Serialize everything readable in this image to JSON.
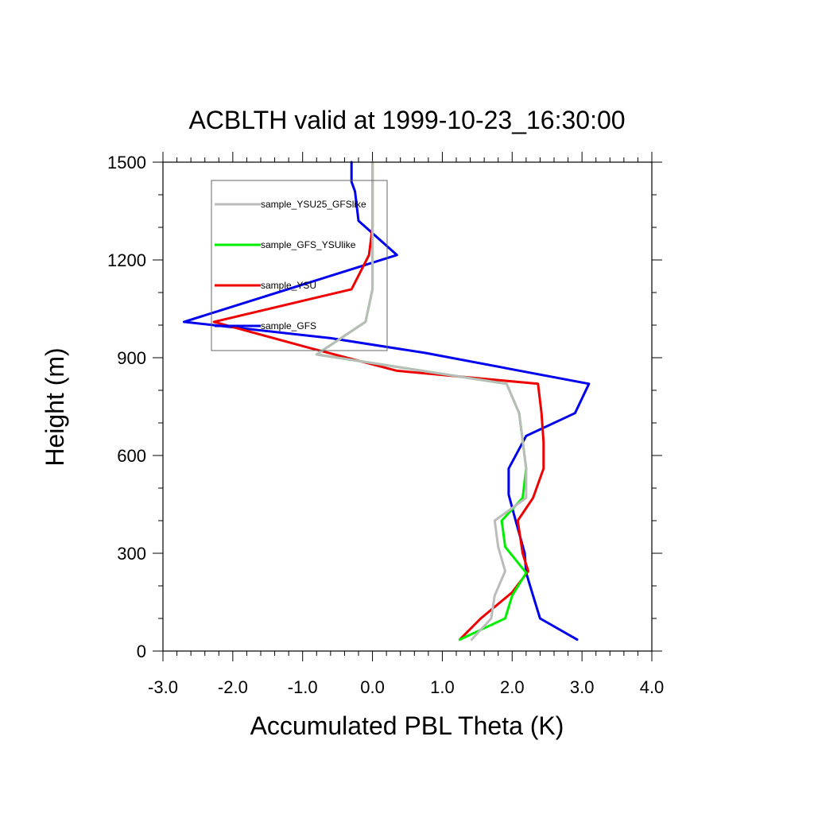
{
  "chart_data": {
    "type": "line",
    "title": "ACBLTH valid at 1999-10-23_16:30:00",
    "xlabel": "Accumulated PBL Theta (K)",
    "ylabel": "Height (m)",
    "xlim": [
      -3.0,
      4.0
    ],
    "ylim": [
      0,
      1500
    ],
    "x_ticks": [
      -3.0,
      -2.0,
      -1.0,
      0.0,
      1.0,
      2.0,
      3.0,
      4.0
    ],
    "x_tick_labels": [
      "-3.0",
      "-2.0",
      "-1.0",
      "0.0",
      "1.0",
      "2.0",
      "3.0",
      "4.0"
    ],
    "y_ticks": [
      0,
      300,
      600,
      900,
      1200,
      1500
    ],
    "y_tick_labels": [
      "0",
      "300",
      "600",
      "900",
      "1200",
      "1500"
    ],
    "grid": false,
    "legend_position": "top-left",
    "series": [
      {
        "name": "sample_GFS",
        "color": "#0000ee",
        "points": [
          [
            2.93,
            35
          ],
          [
            2.4,
            100
          ],
          [
            2.3,
            170
          ],
          [
            2.2,
            240
          ],
          [
            2.18,
            300
          ],
          [
            2.05,
            400
          ],
          [
            1.95,
            480
          ],
          [
            1.95,
            560
          ],
          [
            2.2,
            660
          ],
          [
            2.9,
            730
          ],
          [
            3.1,
            820
          ],
          [
            0.75,
            915
          ],
          [
            -0.6,
            960
          ],
          [
            -2.7,
            1010
          ],
          [
            0.35,
            1215
          ],
          [
            -0.2,
            1320
          ],
          [
            -0.25,
            1410
          ],
          [
            -0.3,
            1440
          ],
          [
            -0.3,
            1500
          ]
        ]
      },
      {
        "name": "sample_YSU",
        "color": "#ee0000",
        "points": [
          [
            1.25,
            35
          ],
          [
            1.55,
            100
          ],
          [
            2.0,
            180
          ],
          [
            2.23,
            245
          ],
          [
            2.15,
            300
          ],
          [
            2.08,
            400
          ],
          [
            2.3,
            470
          ],
          [
            2.45,
            560
          ],
          [
            2.45,
            640
          ],
          [
            2.42,
            730
          ],
          [
            2.37,
            820
          ],
          [
            0.35,
            860
          ],
          [
            -0.9,
            930
          ],
          [
            -2.27,
            1010
          ],
          [
            -0.3,
            1110
          ],
          [
            -0.05,
            1215
          ],
          [
            0.0,
            1300
          ],
          [
            0.0,
            1500
          ]
        ]
      },
      {
        "name": "sample_GFS_YSUlike",
        "color": "#00ee00",
        "points": [
          [
            1.25,
            35
          ],
          [
            1.9,
            100
          ],
          [
            2.0,
            170
          ],
          [
            2.2,
            240
          ],
          [
            1.9,
            320
          ],
          [
            1.85,
            400
          ],
          [
            2.15,
            470
          ],
          [
            2.2,
            560
          ],
          [
            2.1,
            730
          ],
          [
            1.92,
            820
          ],
          [
            -0.8,
            910
          ],
          [
            -0.1,
            1010
          ],
          [
            0.0,
            1110
          ],
          [
            0.0,
            1300
          ],
          [
            0.0,
            1500
          ]
        ]
      },
      {
        "name": "sample_YSU25_GFSlike",
        "color": "#bbbbbb",
        "points": [
          [
            1.42,
            35
          ],
          [
            1.7,
            100
          ],
          [
            1.75,
            170
          ],
          [
            1.9,
            245
          ],
          [
            1.8,
            320
          ],
          [
            1.75,
            400
          ],
          [
            2.2,
            470
          ],
          [
            2.2,
            560
          ],
          [
            2.1,
            730
          ],
          [
            1.92,
            820
          ],
          [
            -0.8,
            910
          ],
          [
            -0.1,
            1010
          ],
          [
            0.0,
            1110
          ],
          [
            0.0,
            1300
          ],
          [
            0.0,
            1500
          ]
        ]
      }
    ],
    "legend_order": [
      "sample_YSU25_GFSlike",
      "sample_GFS_YSUlike",
      "sample_YSU",
      "sample_GFS"
    ]
  }
}
